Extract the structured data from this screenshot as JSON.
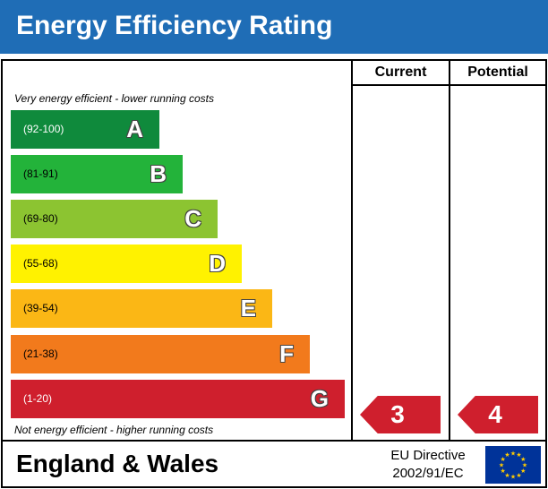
{
  "header": {
    "title": "Energy Efficiency Rating"
  },
  "columns": {
    "current": "Current",
    "potential": "Potential"
  },
  "notes": {
    "top": "Very energy efficient - lower running costs",
    "bottom": "Not energy efficient - higher running costs"
  },
  "footer": {
    "region": "England & Wales",
    "directive_line1": "EU Directive",
    "directive_line2": "2002/91/EC"
  },
  "chart_data": {
    "type": "bar",
    "title": "Energy Efficiency Rating",
    "categories": [
      "A",
      "B",
      "C",
      "D",
      "E",
      "F",
      "G"
    ],
    "ranges": [
      "(92-100)",
      "(81-91)",
      "(69-80)",
      "(55-68)",
      "(39-54)",
      "(21-38)",
      "(1-20)"
    ],
    "colors": [
      "#0f8a3c",
      "#23b33a",
      "#8cc431",
      "#fff200",
      "#fbb715",
      "#f27a1c",
      "#cf1f2d"
    ],
    "current": {
      "value": 3,
      "band": "G",
      "color": "#cf1f2d"
    },
    "potential": {
      "value": 4,
      "band": "G",
      "color": "#cf1f2d"
    }
  }
}
